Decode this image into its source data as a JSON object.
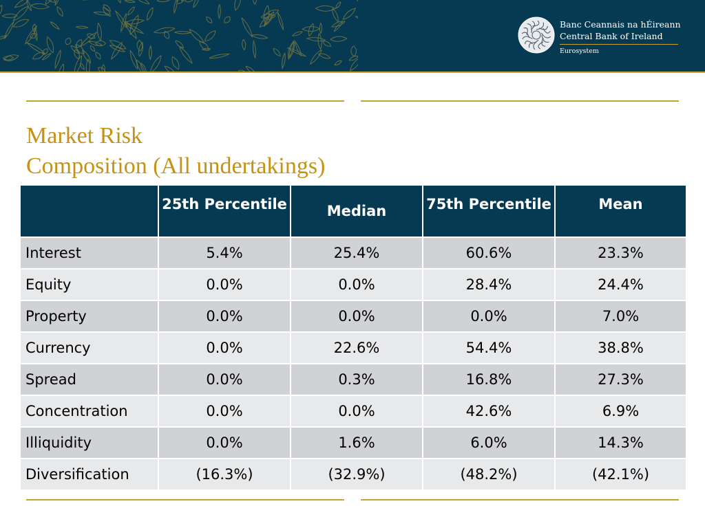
{
  "header": {
    "logo_line1": "Banc Ceannais na hÉireann",
    "logo_line2": "Central Bank of Ireland",
    "logo_sub": "Eurosystem",
    "colors": {
      "navy": "#053a52",
      "gold": "#c9a227"
    }
  },
  "slide": {
    "title_line1": "Market Risk",
    "title_line2": "Composition (All undertakings)",
    "title_color": "#c59213"
  },
  "table": {
    "columns": [
      "",
      "25th Percentile",
      "Median",
      "75th Percentile",
      "Mean"
    ],
    "rows": [
      {
        "label": "Interest",
        "values": [
          "5.4%",
          "25.4%",
          "60.6%",
          "23.3%"
        ]
      },
      {
        "label": "Equity",
        "values": [
          "0.0%",
          "0.0%",
          "28.4%",
          "24.4%"
        ]
      },
      {
        "label": "Property",
        "values": [
          "0.0%",
          "0.0%",
          "0.0%",
          "7.0%"
        ]
      },
      {
        "label": "Currency",
        "values": [
          "0.0%",
          "22.6%",
          "54.4%",
          "38.8%"
        ]
      },
      {
        "label": "Spread",
        "values": [
          "0.0%",
          "0.3%",
          "16.8%",
          "27.3%"
        ]
      },
      {
        "label": "Concentration",
        "values": [
          "0.0%",
          "0.0%",
          "42.6%",
          "6.9%"
        ]
      },
      {
        "label": "Illiquidity",
        "values": [
          "0.0%",
          "1.6%",
          "6.0%",
          "14.3%"
        ]
      },
      {
        "label": "Diversification",
        "values": [
          "(16.3%)",
          "(32.9%)",
          "(48.2%)",
          "(42.1%)"
        ]
      }
    ]
  }
}
